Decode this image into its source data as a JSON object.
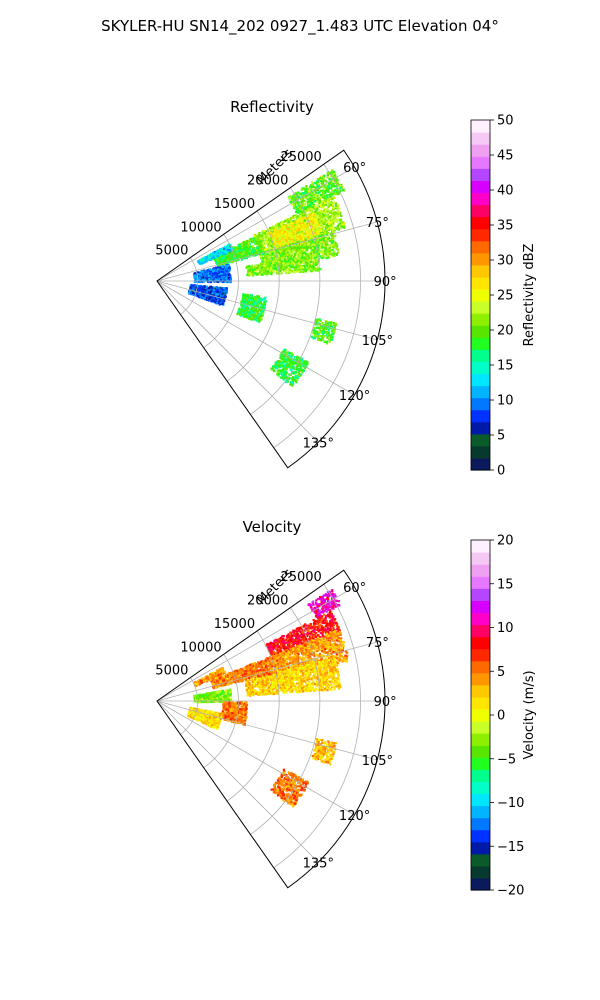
{
  "figure_title": "SKYLER-HU  SN14_202  0927_1.483 UTC Elevation 04°",
  "chart_data": [
    {
      "type": "heatmap",
      "subtype": "polar-sector (radar PPI)",
      "title": "Reflectivity",
      "radial_label": "Meters",
      "radial_ticks": [
        "5000",
        "10000",
        "15000",
        "20000",
        "25000"
      ],
      "radial_range": [
        0,
        28000
      ],
      "azimuth_range_deg": [
        55,
        145
      ],
      "azimuth_ticks": [
        "60°",
        "75°",
        "90°",
        "105°",
        "120°",
        "135°"
      ],
      "grid": true,
      "colorbar": {
        "label": "Reflectivity dBZ",
        "range": [
          0,
          50
        ],
        "ticks": [
          "0",
          "5",
          "10",
          "15",
          "20",
          "25",
          "30",
          "35",
          "40",
          "45",
          "50"
        ],
        "colors": [
          "#0a1a5c",
          "#063a2e",
          "#0a5a2a",
          "#001aa8",
          "#0032ff",
          "#0078ff",
          "#00b4ff",
          "#00e6ff",
          "#00ffc8",
          "#00ff8c",
          "#20ff20",
          "#58e600",
          "#8ef000",
          "#c8ff28",
          "#f0ff00",
          "#ffe600",
          "#ffc800",
          "#ff9600",
          "#ff6a00",
          "#ff2800",
          "#ff0000",
          "#ff0064",
          "#ff00c8",
          "#d700ff",
          "#b446ff",
          "#e678ff",
          "#f0a0f0",
          "#f5c8f5",
          "#fff0ff"
        ]
      },
      "echo_regions": [
        {
          "az": [
            57,
            64
          ],
          "r": [
            19000,
            25500
          ],
          "value": 20
        },
        {
          "az": [
            64,
            74
          ],
          "r": [
            13000,
            24000
          ],
          "value": 22
        },
        {
          "az": [
            66,
            77
          ],
          "r": [
            15000,
            21000
          ],
          "value": 26
        },
        {
          "az": [
            74,
            82
          ],
          "r": [
            13000,
            22500
          ],
          "value": 21
        },
        {
          "az": [
            80,
            86
          ],
          "r": [
            11000,
            20000
          ],
          "value": 21
        },
        {
          "az": [
            65,
            75
          ],
          "r": [
            7500,
            13500
          ],
          "value": 19
        },
        {
          "az": [
            62,
            67
          ],
          "r": [
            5500,
            10000
          ],
          "value": 13
        },
        {
          "az": [
            76,
            90
          ],
          "r": [
            4500,
            9000
          ],
          "value": 9
        },
        {
          "az": [
            95,
            110
          ],
          "r": [
            4000,
            8500
          ],
          "value": 8
        },
        {
          "az": [
            98,
            112
          ],
          "r": [
            10500,
            13500
          ],
          "value": 18
        },
        {
          "az": [
            118,
            128
          ],
          "r": [
            17500,
            21000
          ],
          "value": 18
        },
        {
          "az": [
            103,
            110
          ],
          "r": [
            20000,
            22500
          ],
          "value": 19
        }
      ]
    },
    {
      "type": "heatmap",
      "subtype": "polar-sector (radar PPI)",
      "title": "Velocity",
      "radial_label": "Meters",
      "radial_ticks": [
        "5000",
        "10000",
        "15000",
        "20000",
        "25000"
      ],
      "radial_range": [
        0,
        28000
      ],
      "azimuth_range_deg": [
        55,
        145
      ],
      "azimuth_ticks": [
        "60°",
        "75°",
        "90°",
        "105°",
        "120°",
        "135°"
      ],
      "grid": true,
      "colorbar": {
        "label": "Velocity (m/s)",
        "range": [
          -20,
          20
        ],
        "ticks": [
          "−20",
          "−15",
          "−10",
          "−5",
          "0",
          "5",
          "10",
          "15",
          "20"
        ],
        "colors": [
          "#0a1a5c",
          "#063a2e",
          "#0a5a2a",
          "#001aa8",
          "#0032ff",
          "#0078ff",
          "#00b4ff",
          "#00e6ff",
          "#00ffc8",
          "#00ff8c",
          "#20ff20",
          "#58e600",
          "#8ef000",
          "#c8ff28",
          "#f0ff00",
          "#ffe600",
          "#ffc800",
          "#ff9600",
          "#ff6a00",
          "#ff2800",
          "#ff0000",
          "#ff0064",
          "#ff00c8",
          "#d700ff",
          "#b446ff",
          "#e678ff",
          "#f0a0f0",
          "#f5c8f5",
          "#fff0ff"
        ]
      },
      "echo_regions": [
        {
          "az": [
            57,
            62
          ],
          "r": [
            22000,
            25500
          ],
          "value": 11
        },
        {
          "az": [
            62,
            70
          ],
          "r": [
            15000,
            24000
          ],
          "value": 8
        },
        {
          "az": [
            68,
            78
          ],
          "r": [
            15000,
            24000
          ],
          "value": 4
        },
        {
          "az": [
            76,
            86
          ],
          "r": [
            11000,
            22500
          ],
          "value": 2
        },
        {
          "az": [
            68,
            76
          ],
          "r": [
            7000,
            15000
          ],
          "value": 5
        },
        {
          "az": [
            62,
            67
          ],
          "r": [
            5000,
            9000
          ],
          "value": 4
        },
        {
          "az": [
            80,
            90
          ],
          "r": [
            4500,
            9000
          ],
          "value": -3
        },
        {
          "az": [
            90,
            105
          ],
          "r": [
            8000,
            11000
          ],
          "value": 5
        },
        {
          "az": [
            100,
            115
          ],
          "r": [
            4000,
            8000
          ],
          "value": 2
        },
        {
          "az": [
            118,
            128
          ],
          "r": [
            17500,
            21000
          ],
          "value": 5
        },
        {
          "az": [
            103,
            110
          ],
          "r": [
            20000,
            22500
          ],
          "value": 3
        }
      ]
    }
  ]
}
